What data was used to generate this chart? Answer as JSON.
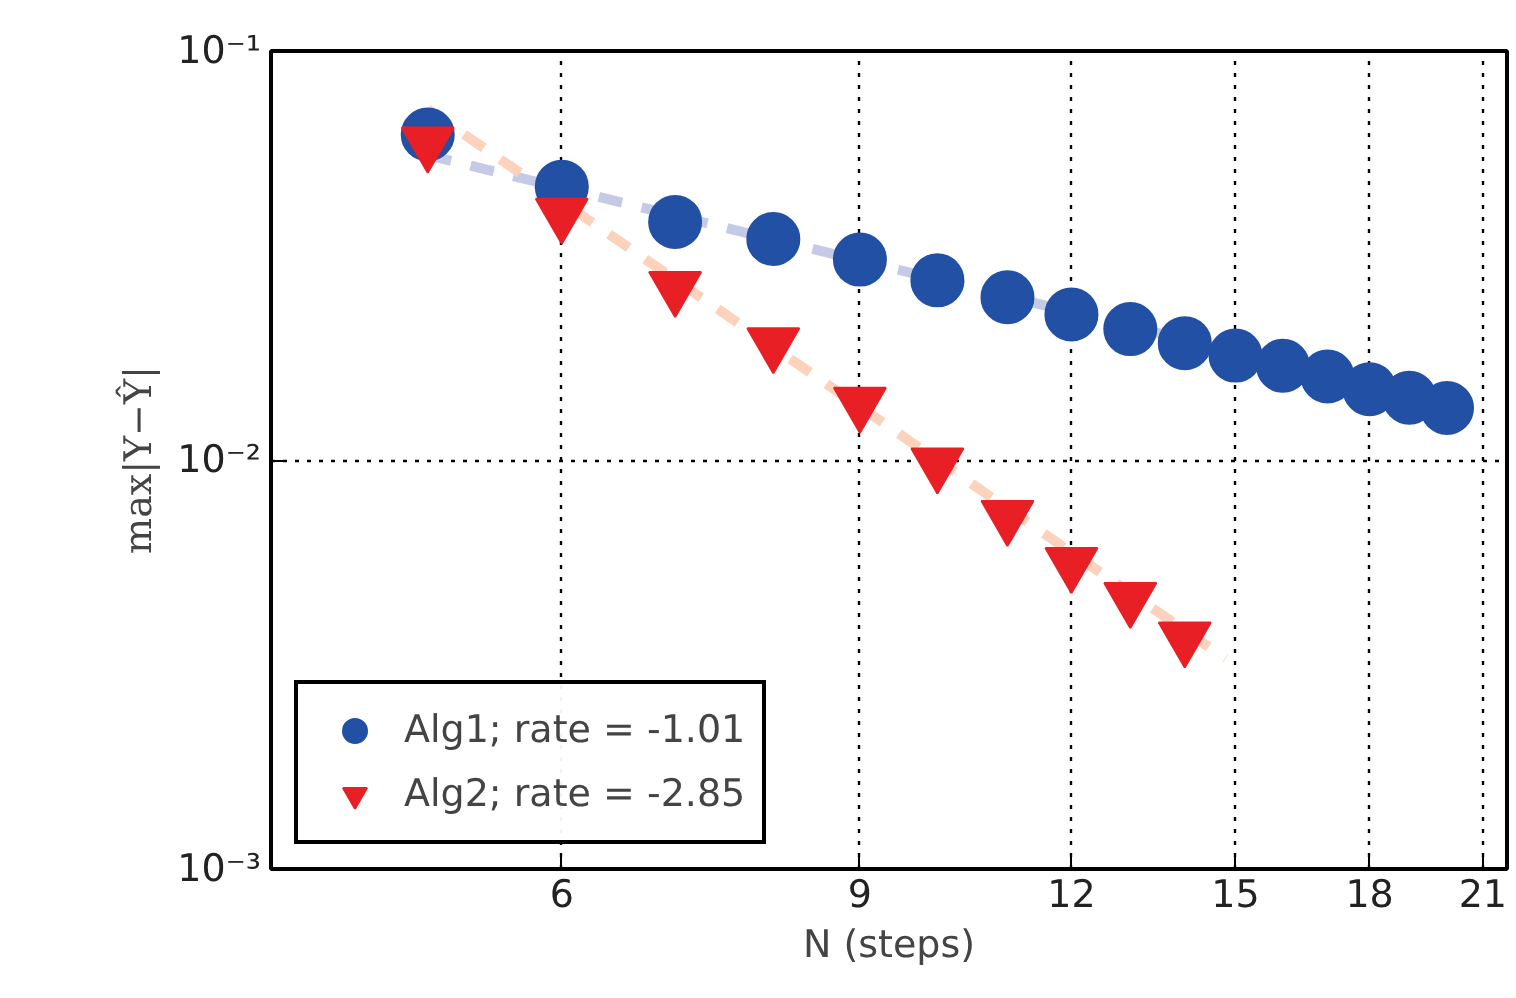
{
  "chart_data": {
    "type": "scatter",
    "xlabel": "N (steps)",
    "ylabel": "max|Y−Ŷ|",
    "log": "xy",
    "grid": true,
    "legend": "bottom left",
    "xlim": [
      4.04,
      21.7
    ],
    "ylim": [
      0.001,
      0.1
    ],
    "xticks": [
      6,
      9,
      12,
      15,
      18,
      21
    ],
    "yticks": [
      {
        "value": 0.001,
        "label": "10⁻³"
      },
      {
        "value": 0.01,
        "label": "10⁻²"
      },
      {
        "value": 0.1,
        "label": "10⁻¹"
      }
    ],
    "series": [
      {
        "type": "line",
        "color": "#c5cbe6",
        "line_style": "dashed",
        "marker": "none",
        "x": [
          5,
          14
        ],
        "values": [
          0.0556,
          0.0197
        ]
      },
      {
        "type": "line",
        "color": "#fcd2bd",
        "line_style": "dashed",
        "marker": "none",
        "x": [
          5,
          14.8
        ],
        "values": [
          0.072,
          0.00327
        ]
      },
      {
        "name": "Alg1; rate = -1.01",
        "color": "#2250a4",
        "marker": "circle",
        "x": [
          5,
          6,
          7,
          8,
          9,
          10,
          11,
          12,
          13,
          14,
          15,
          16,
          17,
          18,
          19,
          20
        ],
        "values": [
          0.0625,
          0.0466,
          0.0382,
          0.0347,
          0.0309,
          0.0275,
          0.025,
          0.0227,
          0.0209,
          0.0193,
          0.018,
          0.017,
          0.016,
          0.0149,
          0.0142,
          0.0134
        ]
      },
      {
        "name": "Alg2; rate = -2.85",
        "color": "#e91f26",
        "marker": "triangle",
        "x": [
          5,
          6,
          7,
          8,
          9,
          10,
          11,
          12,
          13,
          14
        ],
        "values": [
          0.0597,
          0.04,
          0.0265,
          0.0193,
          0.0138,
          0.0098,
          0.0073,
          0.0056,
          0.0046,
          0.00368
        ]
      }
    ]
  }
}
